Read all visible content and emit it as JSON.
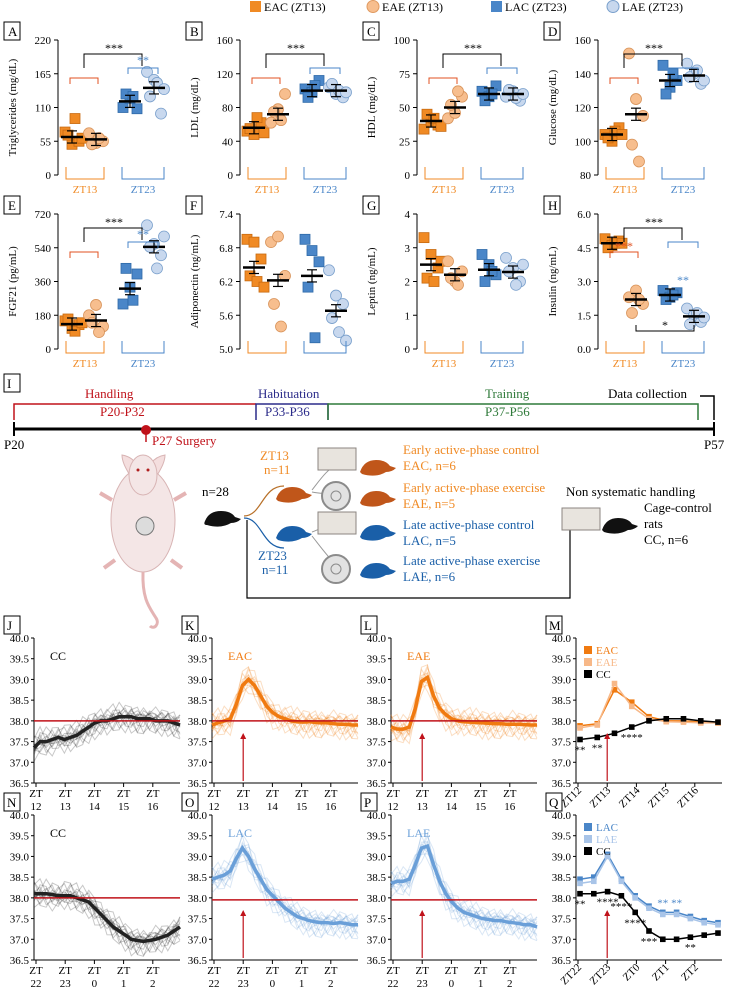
{
  "colors": {
    "eac": "#f08a24",
    "eae": "#f7be8e",
    "lac": "#4a86c8",
    "lae": "#c8d8ee",
    "ref": "#c0121a",
    "black": "#000000"
  },
  "legend": {
    "eac": "EAC (ZT13)",
    "eae": "EAE (ZT13)",
    "lac": "LAC (ZT23)",
    "lae": "LAE (ZT23)"
  },
  "chart_data": [
    {
      "panel": "A",
      "type": "scatter",
      "ylabel": "Triglycerides (mg/dL)",
      "ylim": [
        0,
        220
      ],
      "yticks": [
        "0",
        "55",
        "110",
        "165",
        "220"
      ],
      "xticks": [
        "ZT13",
        "ZT23"
      ],
      "series": [
        {
          "name": "EAC",
          "mean": 62,
          "values": [
            70,
            50,
            55,
            65,
            92,
            60
          ]
        },
        {
          "name": "EAE",
          "mean": 58,
          "values": [
            68,
            52,
            55,
            50,
            60
          ]
        },
        {
          "name": "LAC",
          "mean": 120,
          "values": [
            110,
            125,
            108,
            132,
            128
          ]
        },
        {
          "name": "LAE",
          "mean": 142,
          "values": [
            168,
            155,
            100,
            128,
            150,
            140
          ]
        }
      ],
      "sig": [
        "***",
        "**"
      ]
    },
    {
      "panel": "B",
      "type": "scatter",
      "ylabel": "LDL (mg/dL)",
      "ylim": [
        0,
        160
      ],
      "yticks": [
        "0",
        "40",
        "80",
        "120",
        "160"
      ],
      "xticks": [
        "ZT13",
        "ZT23"
      ],
      "series": [
        {
          "name": "EAC",
          "mean": 56,
          "values": [
            52,
            48,
            62,
            55,
            68,
            50
          ]
        },
        {
          "name": "EAE",
          "mean": 72,
          "values": [
            62,
            78,
            96,
            75,
            65
          ]
        },
        {
          "name": "LAC",
          "mean": 100,
          "values": [
            102,
            98,
            112,
            92,
            106
          ]
        },
        {
          "name": "LAE",
          "mean": 100,
          "values": [
            104,
            96,
            92,
            108,
            100,
            98
          ]
        }
      ],
      "sig": [
        "***"
      ]
    },
    {
      "panel": "C",
      "type": "scatter",
      "ylabel": "HDL (mg/dL)",
      "ylim": [
        0,
        100
      ],
      "yticks": [
        "0",
        "25",
        "50",
        "75",
        "100"
      ],
      "xticks": [
        "ZT13",
        "ZT23"
      ],
      "series": [
        {
          "name": "EAC",
          "mean": 40,
          "values": [
            34,
            40,
            37,
            45,
            42,
            36
          ]
        },
        {
          "name": "EAE",
          "mean": 50,
          "values": [
            42,
            46,
            58,
            52,
            62
          ]
        },
        {
          "name": "LAC",
          "mean": 60,
          "values": [
            62,
            58,
            66,
            55,
            60
          ]
        },
        {
          "name": "LAE",
          "mean": 60,
          "values": [
            58,
            62,
            55,
            63,
            57,
            60
          ]
        }
      ],
      "sig": [
        "***"
      ]
    },
    {
      "panel": "D",
      "type": "scatter",
      "ylabel": "Glucose (mg/dL)",
      "ylim": [
        80,
        160
      ],
      "yticks": [
        "80",
        "100",
        "120",
        "140",
        "160"
      ],
      "xticks": [
        "ZT13",
        "ZT23"
      ],
      "series": [
        {
          "name": "EAC",
          "mean": 104,
          "values": [
            104,
            100,
            108,
            102,
            106,
            104
          ]
        },
        {
          "name": "EAE",
          "mean": 116,
          "values": [
            152,
            125,
            115,
            98,
            88
          ]
        },
        {
          "name": "LAC",
          "mean": 136,
          "values": [
            145,
            132,
            136,
            128,
            140
          ]
        },
        {
          "name": "LAE",
          "mean": 139,
          "values": [
            146,
            140,
            134,
            138,
            142,
            136
          ]
        }
      ],
      "sig": [
        "***"
      ]
    },
    {
      "panel": "E",
      "type": "scatter",
      "ylabel": "FGF21 (pg/mL)",
      "ylim": [
        0,
        720
      ],
      "yticks": [
        "0",
        "180",
        "360",
        "540",
        "720"
      ],
      "xticks": [
        "ZT13",
        "ZT23"
      ],
      "series": [
        {
          "name": "EAC",
          "mean": 133,
          "values": [
            150,
            110,
            130,
            160,
            95,
            140
          ]
        },
        {
          "name": "EAE",
          "mean": 152,
          "values": [
            180,
            235,
            120,
            140,
            90
          ]
        },
        {
          "name": "LAC",
          "mean": 322,
          "values": [
            240,
            330,
            400,
            430,
            260
          ]
        },
        {
          "name": "LAE",
          "mean": 545,
          "values": [
            660,
            560,
            500,
            545,
            430,
            600
          ]
        }
      ],
      "sig": [
        "***",
        "**"
      ]
    },
    {
      "panel": "F",
      "type": "scatter",
      "ylabel": "Adiponectin (ng/mL)",
      "ylim": [
        5.0,
        7.4
      ],
      "yticks": [
        "5.0",
        "5.6",
        "6.2",
        "6.8",
        "7.4"
      ],
      "xticks": [
        "",
        ""
      ],
      "series": [
        {
          "name": "EAC",
          "mean": 6.45,
          "values": [
            6.95,
            6.9,
            6.6,
            6.3,
            6.2,
            6.1
          ]
        },
        {
          "name": "EAE",
          "mean": 6.22,
          "values": [
            6.9,
            7.0,
            6.3,
            5.8,
            5.4
          ]
        },
        {
          "name": "LAC",
          "mean": 6.3,
          "values": [
            6.95,
            6.75,
            6.55,
            6.1,
            5.2
          ]
        },
        {
          "name": "LAE",
          "mean": 5.68,
          "values": [
            6.4,
            5.95,
            5.8,
            5.55,
            5.3,
            5.15
          ]
        }
      ],
      "sig": []
    },
    {
      "panel": "G",
      "type": "scatter",
      "ylabel": "Leptin (ng/mL)",
      "ylim": [
        0,
        4
      ],
      "yticks": [
        "0",
        "1",
        "2",
        "3",
        "4"
      ],
      "xticks": [
        "ZT13",
        "ZT23"
      ],
      "series": [
        {
          "name": "EAC",
          "mean": 2.5,
          "values": [
            3.3,
            2.8,
            2.4,
            2.1,
            2.0,
            2.6
          ]
        },
        {
          "name": "EAE",
          "mean": 2.2,
          "values": [
            2.6,
            2.0,
            2.3,
            2.1,
            1.9
          ]
        },
        {
          "name": "LAC",
          "mean": 2.35,
          "values": [
            2.8,
            2.5,
            2.2,
            2.0,
            2.3
          ]
        },
        {
          "name": "LAE",
          "mean": 2.28,
          "values": [
            2.7,
            2.4,
            2.0,
            2.3,
            1.9,
            2.5
          ]
        }
      ],
      "sig": []
    },
    {
      "panel": "H",
      "type": "scatter",
      "ylabel": "Insulin (ng/mL)",
      "ylim": [
        0,
        6
      ],
      "yticks": [
        "0.0",
        "1.5",
        "3.0",
        "4.5",
        "6.0"
      ],
      "xticks": [
        "ZT13",
        "ZT23"
      ],
      "series": [
        {
          "name": "EAC",
          "mean": 4.7,
          "values": [
            4.9,
            4.6,
            4.8,
            4.5,
            4.7,
            4.7
          ]
        },
        {
          "name": "EAE",
          "mean": 2.2,
          "values": [
            2.3,
            2.6,
            2.0,
            1.6,
            2.2
          ]
        },
        {
          "name": "LAC",
          "mean": 2.4,
          "values": [
            2.6,
            2.3,
            2.5,
            2.2,
            2.4
          ]
        },
        {
          "name": "LAE",
          "mean": 1.45,
          "values": [
            1.8,
            1.5,
            1.2,
            1.1,
            1.6,
            1.4
          ]
        }
      ],
      "sig": [
        "***",
        "***",
        "**",
        "*"
      ]
    },
    {
      "panel": "J",
      "type": "line",
      "label": "CC",
      "xticks": [
        "ZT 12",
        "ZT 13",
        "ZT 14",
        "ZT 15",
        "ZT 16"
      ],
      "ylim": [
        36.5,
        40.0
      ],
      "ref": 38.0,
      "arrow": false,
      "mean": [
        37.35,
        37.5,
        37.5,
        37.55,
        37.6,
        37.55,
        37.6,
        37.65,
        37.75,
        37.85,
        37.95,
        38.0,
        38.0,
        38.05,
        38.1,
        38.1,
        38.1,
        38.05,
        38.05,
        38.05,
        38.0,
        38.0,
        38.0,
        37.95,
        37.9
      ]
    },
    {
      "panel": "K",
      "type": "line",
      "label": "EAC",
      "xticks": [
        "ZT 12",
        "ZT 13",
        "ZT 14",
        "ZT 15",
        "ZT 16"
      ],
      "ylim": [
        36.5,
        40.0
      ],
      "ref": 38.0,
      "arrow": true,
      "mean": [
        37.9,
        37.95,
        38.0,
        38.05,
        38.4,
        38.85,
        39.0,
        38.85,
        38.6,
        38.35,
        38.2,
        38.1,
        38.05,
        38.0,
        37.98,
        37.97,
        37.98,
        37.96,
        37.95,
        37.95,
        37.93,
        37.92,
        37.92,
        37.9,
        37.9
      ]
    },
    {
      "panel": "L",
      "type": "line",
      "label": "EAE",
      "xticks": [
        "ZT 12",
        "ZT 13",
        "ZT 14",
        "ZT 15",
        "ZT 16"
      ],
      "ylim": [
        36.5,
        40.0
      ],
      "ref": 38.0,
      "arrow": true,
      "mean": [
        37.85,
        37.8,
        37.8,
        37.85,
        38.3,
        38.95,
        39.05,
        38.6,
        38.3,
        38.15,
        38.05,
        38.0,
        37.98,
        37.97,
        37.96,
        37.95,
        37.94,
        37.93,
        37.93,
        37.92,
        37.92,
        37.92,
        37.91,
        37.9,
        37.9
      ]
    },
    {
      "panel": "N",
      "type": "line",
      "label": "CC",
      "xticks": [
        "ZT 22",
        "ZT 23",
        "ZT 0",
        "ZT 1",
        "ZT 2"
      ],
      "ylim": [
        36.5,
        40.0
      ],
      "ref": 38.0,
      "arrow": false,
      "mean": [
        38.1,
        38.1,
        38.1,
        38.08,
        38.05,
        38.05,
        38.05,
        38.0,
        37.95,
        37.9,
        37.75,
        37.6,
        37.45,
        37.3,
        37.2,
        37.1,
        37.0,
        36.97,
        36.95,
        36.97,
        37.0,
        37.05,
        37.1,
        37.2,
        37.3
      ]
    },
    {
      "panel": "O",
      "type": "line",
      "label": "LAC",
      "xticks": [
        "ZT 22",
        "ZT 23",
        "ZT 0",
        "ZT 1",
        "ZT 2"
      ],
      "ylim": [
        36.5,
        40.0
      ],
      "ref": 37.95,
      "arrow": true,
      "mean": [
        38.45,
        38.5,
        38.55,
        38.65,
        38.95,
        39.2,
        39.0,
        38.7,
        38.45,
        38.2,
        38.05,
        37.9,
        37.75,
        37.65,
        37.55,
        37.5,
        37.45,
        37.42,
        37.4,
        37.4,
        37.38,
        37.4,
        37.38,
        37.35,
        37.35
      ]
    },
    {
      "panel": "P",
      "type": "line",
      "label": "LAE",
      "xticks": [
        "ZT 22",
        "ZT 23",
        "ZT 0",
        "ZT 1",
        "ZT 2"
      ],
      "ylim": [
        36.5,
        40.0
      ],
      "ref": 37.95,
      "arrow": true,
      "mean": [
        38.35,
        38.4,
        38.4,
        38.45,
        38.8,
        39.2,
        39.25,
        38.8,
        38.4,
        38.1,
        37.9,
        37.75,
        37.65,
        37.6,
        37.55,
        37.5,
        37.48,
        37.45,
        37.45,
        37.42,
        37.4,
        37.38,
        37.35,
        37.35,
        37.3
      ]
    },
    {
      "panel": "M",
      "type": "line",
      "xticks": [
        "ZT12",
        "ZT13",
        "ZT14",
        "ZT15",
        "ZT16"
      ],
      "ylim": [
        36.5,
        40.0
      ],
      "arrow": true,
      "legend": [
        "EAC",
        "EAE",
        "CC"
      ],
      "series": [
        {
          "name": "EAC",
          "values": [
            37.88,
            37.93,
            38.75,
            38.45,
            38.1,
            38.0,
            38.0,
            37.97,
            37.95
          ]
        },
        {
          "name": "EAE",
          "values": [
            37.83,
            37.9,
            38.9,
            38.35,
            38.05,
            37.98,
            37.97,
            37.95,
            37.95
          ]
        },
        {
          "name": "CC",
          "values": [
            37.55,
            37.6,
            37.7,
            37.85,
            38.0,
            38.05,
            38.05,
            38.0,
            37.97
          ]
        }
      ],
      "stars": [
        {
          "i": 0,
          "t": "**"
        },
        {
          "i": 1,
          "t": "**"
        },
        {
          "i": 3,
          "t": "****"
        }
      ]
    },
    {
      "panel": "Q",
      "type": "line",
      "xticks": [
        "ZT22",
        "ZT23",
        "ZT0",
        "ZT1",
        "ZT2"
      ],
      "ylim": [
        36.5,
        40.0
      ],
      "arrow": true,
      "legend": [
        "LAC",
        "LAE",
        "CC"
      ],
      "series": [
        {
          "name": "LAC",
          "values": [
            38.45,
            38.5,
            39.05,
            38.45,
            38.05,
            37.8,
            37.65,
            37.65,
            37.55,
            37.45,
            37.4
          ]
        },
        {
          "name": "LAE",
          "values": [
            38.35,
            38.4,
            39.0,
            38.4,
            38.0,
            37.75,
            37.6,
            37.6,
            37.5,
            37.4,
            37.35
          ]
        },
        {
          "name": "CC",
          "values": [
            38.1,
            38.1,
            38.15,
            38.05,
            37.65,
            37.2,
            37.0,
            37.0,
            37.05,
            37.1,
            37.15
          ]
        }
      ],
      "stars": [
        {
          "i": 0,
          "t": "**"
        },
        {
          "i": 2,
          "t": "****"
        },
        {
          "i": 3,
          "t": "****"
        },
        {
          "i": 4,
          "t": "****"
        },
        {
          "i": 5,
          "t": "***"
        },
        {
          "i": 8,
          "t": "**"
        }
      ],
      "blue_stars": [
        {
          "i": 6,
          "t": "**"
        },
        {
          "i": 7,
          "t": "**"
        }
      ]
    }
  ],
  "timeline": {
    "panel": "I",
    "start": "P20",
    "end": "P57",
    "phases": [
      {
        "label": "Handling",
        "range": "P20-P32",
        "color": "#c0121a"
      },
      {
        "label": "Habituation",
        "range": "P33-P36",
        "color": "#2b2b8a"
      },
      {
        "label": "Training",
        "range": "P37-P56",
        "color": "#2f7a3a"
      },
      {
        "label": "Data collection",
        "range": "",
        "color": "#000000"
      }
    ],
    "surgery": "P27 Surgery"
  },
  "design": {
    "n_total": "n=28",
    "zt13": "ZT13",
    "zt13_n": "n=11",
    "zt23": "ZT23",
    "zt23_n": "n=11",
    "groups": [
      {
        "title": "Early active-phase control",
        "sub": "EAC, n=6",
        "color": "#f08a24"
      },
      {
        "title": "Early active-phase exercise",
        "sub": "EAE, n=5",
        "color": "#f08a24"
      },
      {
        "title": "Late active-phase control",
        "sub": "LAC, n=5",
        "color": "#1a5fa8"
      },
      {
        "title": "Late active-phase exercise",
        "sub": "LAE, n=6",
        "color": "#1a5fa8"
      }
    ],
    "nonsys": "Non systematic handling",
    "cage": [
      "Cage-control",
      "rats",
      "CC, n=6"
    ]
  }
}
